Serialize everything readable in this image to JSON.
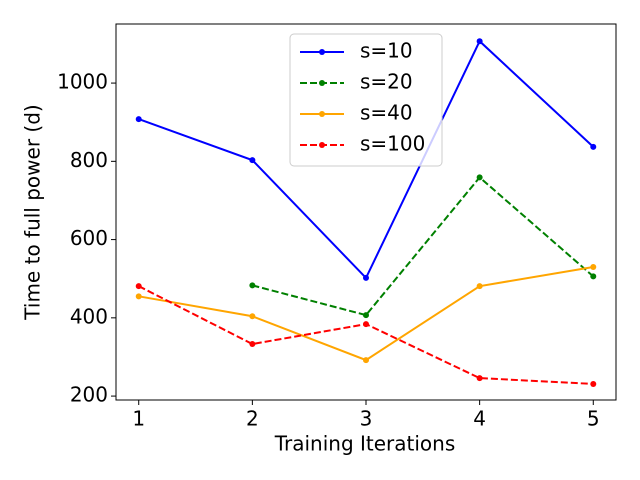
{
  "chart_data": {
    "type": "line",
    "x_label": "Training Iterations",
    "y_label": "Time to full power (d)",
    "x": [
      1,
      2,
      3,
      4,
      5
    ],
    "series": [
      {
        "name": "s=10",
        "color": "#0000ff",
        "dash": false,
        "values": [
          908,
          803,
          502,
          1107,
          837
        ]
      },
      {
        "name": "s=20",
        "color": "#008000",
        "dash": true,
        "values": [
          null,
          483,
          407,
          759,
          506
        ]
      },
      {
        "name": "s=40",
        "color": "#ffa500",
        "dash": false,
        "values": [
          455,
          404,
          292,
          481,
          530
        ]
      },
      {
        "name": "s=100",
        "color": "#ff0000",
        "dash": true,
        "values": [
          481,
          333,
          384,
          246,
          231
        ]
      }
    ],
    "xlim": [
      0.8,
      5.2
    ],
    "ylim": [
      190,
      1151
    ],
    "xticks": [
      1,
      2,
      3,
      4,
      5
    ],
    "yticks": [
      200,
      400,
      600,
      800,
      1000
    ],
    "legend": "upper center"
  }
}
